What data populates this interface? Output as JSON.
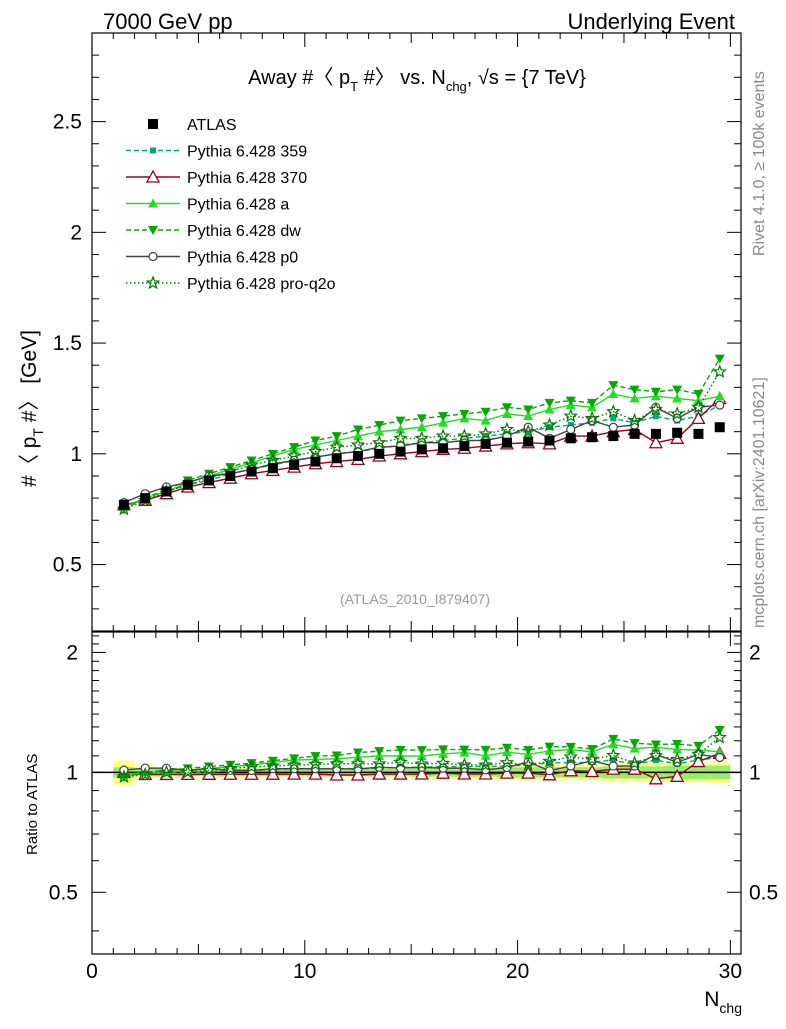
{
  "header": {
    "left": "7000 GeV pp",
    "right": "Underlying Event"
  },
  "side_labels": {
    "rivet": "Rivet 4.1.0, ≥ 100k events",
    "mcplots": "mcplots.cern.ch [arXiv:2401.10621]"
  },
  "colors": {
    "atlas": "#000000",
    "p359": "#00aa77",
    "p370": "#990022",
    "pa": "#22dd22",
    "pdw": "#00aa00",
    "pp0": "#444444",
    "pq2o": "#007700",
    "band_inner": "#99ee66",
    "band_outer": "#ffff88"
  },
  "chart_data": {
    "type": "line",
    "title": "Away #〈 p_T #〉 vs. N_chg, √s = {7 TeV}",
    "title_parts": {
      "main": "Away #〈 p",
      "sub_t": "T",
      "after_t": " #〉 vs. N",
      "sub_chg": "chg",
      "tail": ", √s = {7 TeV}"
    },
    "watermark": "(ATLAS_2010_I879407)",
    "xlabel": "N_chg",
    "xlabel_parts": {
      "main": "N",
      "sub": "chg"
    },
    "ylabel": "#〈 p_T #〉 [GeV]",
    "ylabel_parts": {
      "pre": "#〈 p",
      "sub": "T",
      "post": " #〉 [GeV]"
    },
    "ratio_ylabel": "Ratio to ATLAS",
    "xlim": [
      0,
      30.5
    ],
    "ylim": [
      0.2,
      2.9
    ],
    "ratio_ylim": [
      0.35,
      2.25
    ],
    "x_ticks": [
      0,
      10,
      20,
      30
    ],
    "x_tick_labels": [
      "0",
      "10",
      "20",
      "30"
    ],
    "y_ticks": [
      0.5,
      1,
      1.5,
      2,
      2.5
    ],
    "y_tick_labels": [
      "0.5",
      "1",
      "1.5",
      "2",
      "2.5"
    ],
    "ratio_ticks": [
      0.5,
      1,
      2
    ],
    "ratio_tick_labels": [
      "0.5",
      "1",
      "2"
    ],
    "x": [
      1.5,
      2.5,
      3.5,
      4.5,
      5.5,
      6.5,
      7.5,
      8.5,
      9.5,
      10.5,
      11.5,
      12.5,
      13.5,
      14.5,
      15.5,
      16.5,
      17.5,
      18.5,
      19.5,
      20.5,
      21.5,
      22.5,
      23.5,
      24.5,
      25.5,
      26.5,
      27.5,
      28.5,
      29.5
    ],
    "reference": {
      "name": "ATLAS",
      "values": [
        0.77,
        0.8,
        0.83,
        0.86,
        0.88,
        0.9,
        0.92,
        0.935,
        0.95,
        0.965,
        0.98,
        0.99,
        1.0,
        1.01,
        1.02,
        1.025,
        1.035,
        1.045,
        1.05,
        1.055,
        1.06,
        1.07,
        1.075,
        1.08,
        1.09,
        1.09,
        1.095,
        1.09,
        1.12
      ],
      "band_inner": [
        0.03,
        0.02,
        0.02,
        0.02,
        0.02,
        0.02,
        0.02,
        0.02,
        0.02,
        0.02,
        0.02,
        0.02,
        0.02,
        0.02,
        0.025,
        0.025,
        0.025,
        0.025,
        0.03,
        0.03,
        0.03,
        0.03,
        0.03,
        0.035,
        0.035,
        0.035,
        0.04,
        0.04,
        0.04
      ],
      "band_outer": [
        0.07,
        0.035,
        0.03,
        0.03,
        0.03,
        0.03,
        0.03,
        0.03,
        0.03,
        0.03,
        0.03,
        0.03,
        0.03,
        0.03,
        0.035,
        0.035,
        0.035,
        0.04,
        0.04,
        0.045,
        0.045,
        0.045,
        0.045,
        0.05,
        0.05,
        0.055,
        0.055,
        0.055,
        0.06
      ]
    },
    "series": [
      {
        "key": "p359",
        "name": "Pythia 6.428 359",
        "marker": "square-small",
        "dash": "5,3",
        "values": [
          0.76,
          0.8,
          0.83,
          0.86,
          0.88,
          0.91,
          0.93,
          0.95,
          0.97,
          0.985,
          1.0,
          1.01,
          1.025,
          1.04,
          1.05,
          1.06,
          1.07,
          1.08,
          1.09,
          1.1,
          1.12,
          1.13,
          1.14,
          1.16,
          1.14,
          1.17,
          1.15,
          1.17,
          1.22
        ]
      },
      {
        "key": "p370",
        "name": "Pythia 6.428 370",
        "marker": "triangle-open",
        "dash": "",
        "values": [
          0.77,
          0.79,
          0.82,
          0.85,
          0.87,
          0.89,
          0.91,
          0.925,
          0.94,
          0.955,
          0.965,
          0.975,
          0.99,
          1.0,
          1.01,
          1.02,
          1.025,
          1.035,
          1.045,
          1.05,
          1.045,
          1.08,
          1.08,
          1.1,
          1.11,
          1.05,
          1.07,
          1.16,
          1.25
        ]
      },
      {
        "key": "pa",
        "name": "Pythia 6.428 a",
        "marker": "triangle-up",
        "dash": "",
        "values": [
          0.76,
          0.8,
          0.83,
          0.87,
          0.9,
          0.93,
          0.96,
          0.99,
          1.02,
          1.04,
          1.06,
          1.08,
          1.1,
          1.11,
          1.12,
          1.14,
          1.16,
          1.15,
          1.18,
          1.17,
          1.2,
          1.22,
          1.21,
          1.27,
          1.25,
          1.26,
          1.25,
          1.24,
          1.26
        ]
      },
      {
        "key": "pdw",
        "name": "Pythia 6.428 dw",
        "marker": "triangle-down",
        "dash": "5,3",
        "values": [
          0.75,
          0.8,
          0.84,
          0.88,
          0.91,
          0.94,
          0.97,
          1.0,
          1.03,
          1.06,
          1.08,
          1.11,
          1.13,
          1.15,
          1.16,
          1.17,
          1.18,
          1.19,
          1.21,
          1.2,
          1.23,
          1.24,
          1.23,
          1.31,
          1.29,
          1.28,
          1.29,
          1.27,
          1.43
        ]
      },
      {
        "key": "pp0",
        "name": "Pythia 6.428 p0",
        "marker": "circle-open",
        "dash": "",
        "values": [
          0.78,
          0.82,
          0.85,
          0.87,
          0.9,
          0.91,
          0.93,
          0.955,
          0.97,
          0.985,
          1.0,
          1.01,
          1.03,
          1.035,
          1.05,
          1.05,
          1.06,
          1.06,
          1.08,
          1.12,
          1.07,
          1.11,
          1.15,
          1.12,
          1.13,
          1.21,
          1.16,
          1.21,
          1.22
        ]
      },
      {
        "key": "pq2o",
        "name": "Pythia 6.428 pro-q2o",
        "marker": "star",
        "dash": "1.5,2.5",
        "values": [
          0.75,
          0.79,
          0.83,
          0.86,
          0.89,
          0.92,
          0.95,
          0.97,
          0.99,
          1.01,
          1.03,
          1.04,
          1.05,
          1.07,
          1.07,
          1.08,
          1.08,
          1.09,
          1.11,
          1.1,
          1.13,
          1.17,
          1.16,
          1.19,
          1.15,
          1.2,
          1.18,
          1.21,
          1.37
        ]
      }
    ]
  }
}
